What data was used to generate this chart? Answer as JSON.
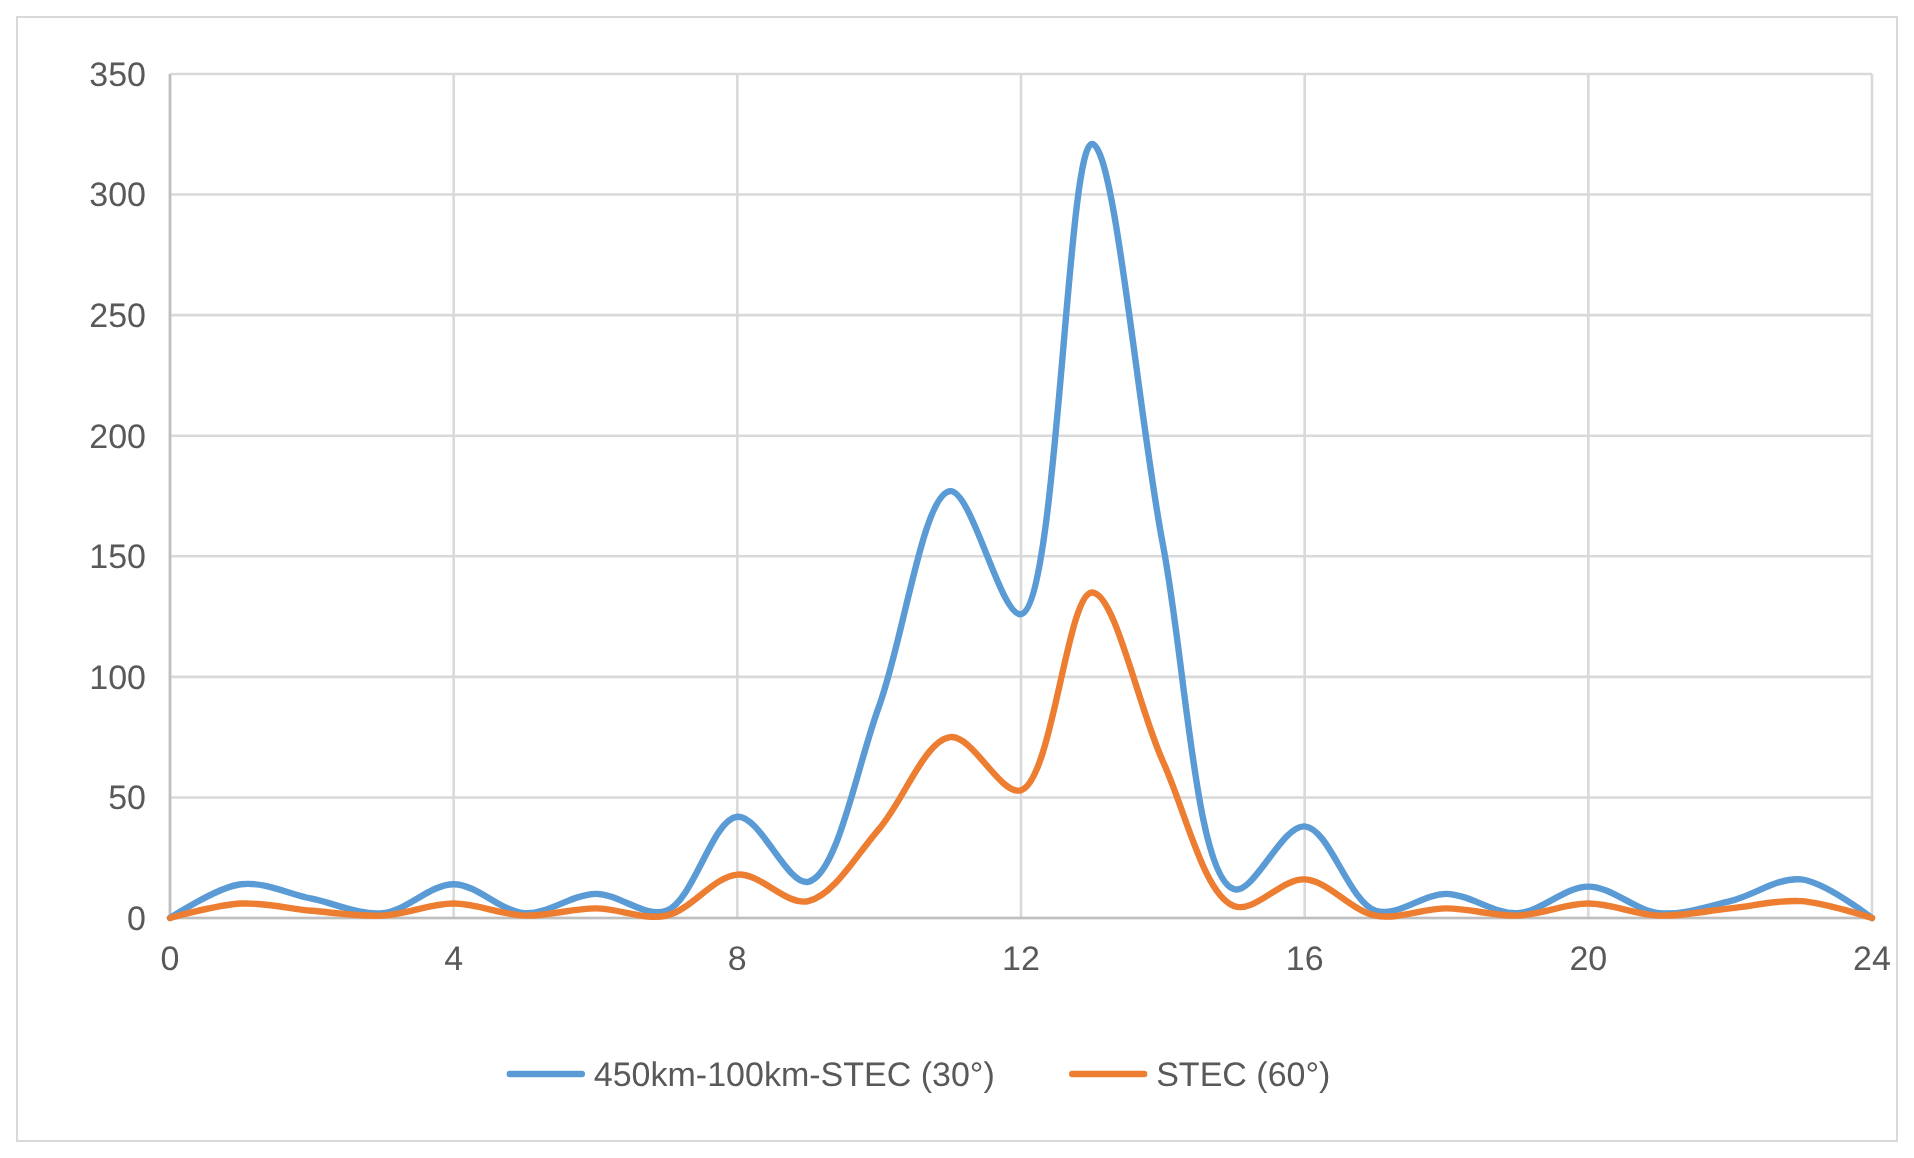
{
  "chart_data": {
    "type": "line",
    "x": [
      0,
      1,
      2,
      3,
      4,
      5,
      6,
      7,
      8,
      9,
      10,
      11,
      12,
      13,
      14,
      15,
      16,
      17,
      18,
      19,
      20,
      21,
      22,
      23,
      24
    ],
    "series": [
      {
        "name": "450km-100km-STEC (30°)",
        "color": "#5b9bd5",
        "values": [
          0,
          14,
          8,
          2,
          14,
          2,
          10,
          3,
          42,
          15,
          88,
          177,
          126,
          321,
          155,
          12,
          38,
          3,
          10,
          2,
          13,
          2,
          7,
          16,
          0
        ]
      },
      {
        "name": "STEC (60°)",
        "color": "#ed7d31",
        "values": [
          0,
          6,
          3,
          1,
          6,
          1,
          4,
          1,
          18,
          7,
          37,
          75,
          53,
          135,
          65,
          5,
          16,
          1,
          4,
          1,
          6,
          1,
          4,
          7,
          0
        ]
      }
    ],
    "xlim": [
      0,
      24
    ],
    "xticks": [
      0,
      4,
      8,
      12,
      16,
      20,
      24
    ],
    "ylim": [
      0,
      350
    ],
    "yticks": [
      0,
      50,
      100,
      150,
      200,
      250,
      300,
      350
    ],
    "grid": true,
    "legend": "bottom",
    "marker": "none",
    "line_style": "solid"
  }
}
